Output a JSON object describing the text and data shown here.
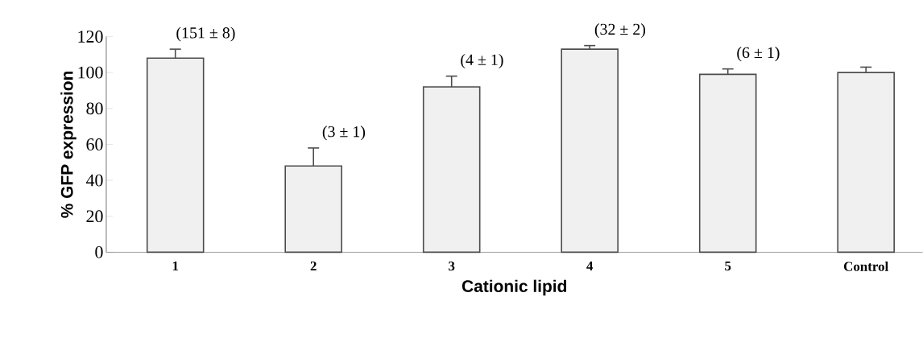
{
  "chart_data": {
    "type": "bar",
    "xlabel": "Cationic lipid",
    "ylabel": "% GFP expression",
    "categories": [
      "1",
      "2",
      "3",
      "4",
      "5",
      "Control"
    ],
    "values": [
      108,
      48,
      92,
      113,
      99,
      100
    ],
    "errors": [
      5,
      10,
      6,
      2,
      3,
      3
    ],
    "color": "#f0f0f0",
    "ylim": [
      0,
      120
    ],
    "yticks": [
      0,
      20,
      40,
      60,
      80,
      100,
      120
    ],
    "grid": false,
    "annotations": [
      "(151 ± 8)",
      "(3 ± 1)",
      "(4 ± 1)",
      "(32 ± 2)",
      "(6 ± 1)"
    ]
  }
}
